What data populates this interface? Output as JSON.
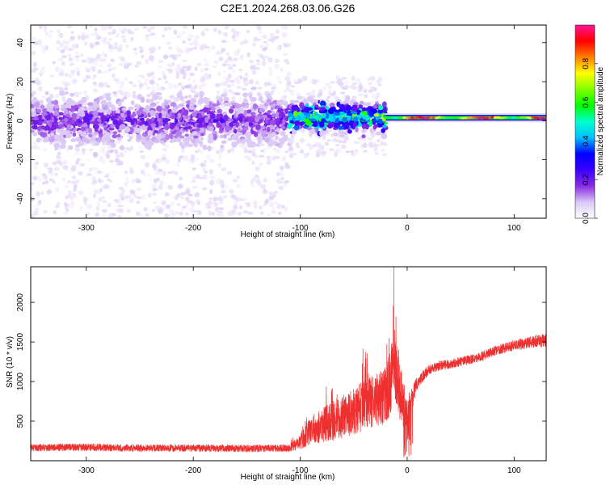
{
  "figure": {
    "title": "C2E1.2024.268.03.06.G26"
  },
  "chart_data": [
    {
      "type": "heatmap",
      "title": "C2E1.2024.268.03.06.G26",
      "xlabel": "Height of straight line (km)",
      "ylabel": "Frequency (Hz)",
      "xlim": [
        -352,
        130
      ],
      "ylim": [
        -50,
        49
      ],
      "x_ticks": [
        -300,
        -200,
        -100,
        0,
        100
      ],
      "x_tick_labels": [
        "-300",
        "-200",
        "-100",
        "0",
        "100"
      ],
      "y_ticks": [
        -40,
        -20,
        0,
        20,
        40
      ],
      "y_tick_labels": [
        "-40",
        "-20",
        "0",
        "20",
        "40"
      ],
      "colorbar": {
        "label": "Normalized spectral amplitude",
        "range": [
          0,
          1
        ],
        "ticks": [
          0.0,
          0.2,
          0.4,
          0.6,
          0.8
        ],
        "tick_labels": [
          "0.0",
          "0.2",
          "0.4",
          "0.6",
          "0.8"
        ],
        "colors": [
          "#ffffff",
          "#d9c8f5",
          "#8a2be2",
          "#3a00ff",
          "#0000ff",
          "#00bfff",
          "#00ffd0",
          "#00ff00",
          "#80ff00",
          "#ffff00",
          "#ff8000",
          "#ff0000",
          "#ff1493"
        ]
      },
      "regions": [
        {
          "x_range": [
            -352,
            -110
          ],
          "center_freq_hz": 0,
          "dense_band_hz": 10,
          "sparse_spread_hz": 49,
          "typical_amplitude": 0.12
        },
        {
          "x_range": [
            -110,
            -20
          ],
          "center_freq_hz": 2,
          "dense_band_hz": 6,
          "sparse_spread_hz": 20,
          "typical_amplitude": 0.35
        },
        {
          "x_range": [
            -20,
            130
          ],
          "center_freq_hz": 1.5,
          "dense_band_hz": 1.5,
          "sparse_spread_hz": 3,
          "typical_amplitude": 0.75
        }
      ]
    },
    {
      "type": "line",
      "xlabel": "Height of straight line (km)",
      "ylabel": "SNR (10 * v/v)",
      "xlim": [
        -352,
        130
      ],
      "ylim": [
        0,
        2450
      ],
      "x_ticks": [
        -300,
        -200,
        -100,
        0,
        100
      ],
      "x_tick_labels": [
        "-300",
        "-200",
        "-100",
        "0",
        "100"
      ],
      "y_ticks": [
        500,
        1000,
        1500,
        2000
      ],
      "y_tick_labels": [
        "500",
        "1000",
        "1500",
        "2000"
      ],
      "color": "#ef3030",
      "series": [
        {
          "x": [
            -352,
            -300,
            -250,
            -200,
            -150,
            -110,
            -100,
            -90,
            -80,
            -70,
            -60,
            -50,
            -40,
            -30,
            -20,
            -15,
            -13,
            -10,
            -5,
            0,
            10,
            20,
            30,
            40,
            50,
            60,
            70,
            80,
            90,
            100,
            110,
            120,
            130
          ],
          "y": [
            165,
            170,
            160,
            160,
            155,
            160,
            250,
            380,
            450,
            500,
            560,
            620,
            700,
            760,
            820,
            1000,
            1400,
            1100,
            750,
            620,
            1000,
            1150,
            1200,
            1220,
            1250,
            1280,
            1320,
            1380,
            1420,
            1460,
            1480,
            1510,
            1520
          ],
          "noise_amplitude": [
            45,
            45,
            45,
            45,
            45,
            45,
            110,
            170,
            220,
            250,
            270,
            290,
            320,
            340,
            360,
            420,
            450,
            420,
            350,
            200,
            80,
            60,
            60,
            60,
            60,
            60,
            60,
            60,
            60,
            70,
            70,
            80,
            80
          ],
          "spikes": [
            {
              "x": -12.5,
              "y": 2450
            },
            {
              "x": -10.5,
              "y": 1820
            },
            {
              "x": -17,
              "y": 1550
            },
            {
              "x": -8,
              "y": 1400
            }
          ]
        }
      ]
    }
  ]
}
